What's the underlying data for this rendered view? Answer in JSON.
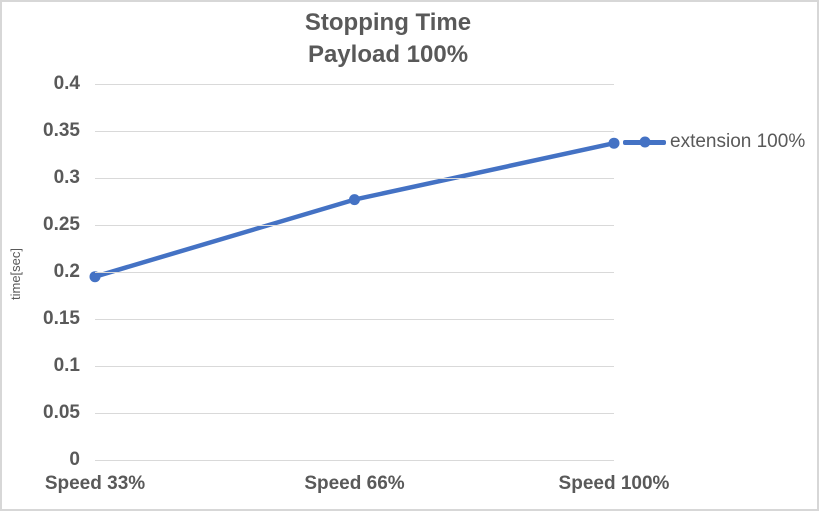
{
  "chart_data": {
    "type": "line",
    "title": "Stopping Time",
    "subtitle": "Payload 100%",
    "xlabel": "",
    "ylabel": "time[sec]",
    "categories": [
      "Speed 33%",
      "Speed 66%",
      "Speed 100%"
    ],
    "series": [
      {
        "name": "extension 100%",
        "values": [
          0.195,
          0.277,
          0.337
        ],
        "color": "#4472C4",
        "marker": "circle"
      }
    ],
    "ylim": [
      0,
      0.4
    ],
    "yticks": [
      {
        "value": 0,
        "label": "0"
      },
      {
        "value": 0.05,
        "label": "0.05"
      },
      {
        "value": 0.1,
        "label": "0.1"
      },
      {
        "value": 0.15,
        "label": "0.15"
      },
      {
        "value": 0.2,
        "label": "0.2"
      },
      {
        "value": 0.25,
        "label": "0.25"
      },
      {
        "value": 0.3,
        "label": "0.3"
      },
      {
        "value": 0.35,
        "label": "0.35"
      },
      {
        "value": 0.4,
        "label": "0.4"
      }
    ],
    "grid": true,
    "legend_position": "right",
    "colors": {
      "text": "#595959",
      "gridline": "#D9D9D9",
      "background": "#FFFFFF",
      "border": "#D7D7D7"
    }
  }
}
